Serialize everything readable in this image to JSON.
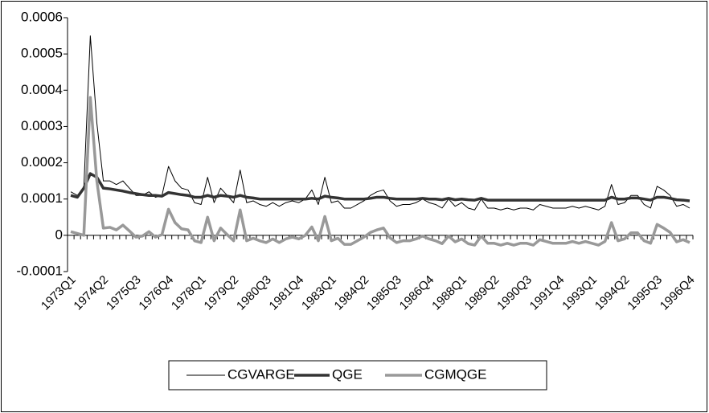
{
  "chart_data": {
    "type": "line",
    "categories": [
      "1973Q1",
      null,
      null,
      null,
      null,
      "1974Q2",
      null,
      null,
      null,
      null,
      "1975Q3",
      null,
      null,
      null,
      null,
      "1976Q4",
      null,
      null,
      null,
      null,
      "1978Q1",
      null,
      null,
      null,
      null,
      "1979Q2",
      null,
      null,
      null,
      null,
      "1980Q3",
      null,
      null,
      null,
      null,
      "1981Q4",
      null,
      null,
      null,
      null,
      "1983Q1",
      null,
      null,
      null,
      null,
      "1984Q2",
      null,
      null,
      null,
      null,
      "1985Q3",
      null,
      null,
      null,
      null,
      "1986Q4",
      null,
      null,
      null,
      null,
      "1988Q1",
      null,
      null,
      null,
      null,
      "1989Q2",
      null,
      null,
      null,
      null,
      "1990Q3",
      null,
      null,
      null,
      null,
      "1991Q4",
      null,
      null,
      null,
      null,
      "1993Q1",
      null,
      null,
      null,
      null,
      "1994Q2",
      null,
      null,
      null,
      null,
      "1995Q3",
      null,
      null,
      null,
      null,
      "1996Q4"
    ],
    "series": [
      {
        "name": "CGVARGE",
        "color": "#000000",
        "width": 1,
        "values": [
          0.00012,
          0.00011,
          0.00013,
          0.00055,
          0.00031,
          0.00015,
          0.00015,
          0.00014,
          0.00015,
          0.00013,
          0.00011,
          0.00011,
          0.00012,
          0.000105,
          0.00011,
          0.00019,
          0.00015,
          0.00013,
          0.000125,
          9e-05,
          8.5e-05,
          0.00016,
          9e-05,
          0.00013,
          0.00011,
          9e-05,
          0.00018,
          9e-05,
          9.5e-05,
          8.5e-05,
          8e-05,
          9e-05,
          8e-05,
          9e-05,
          9.5e-05,
          9e-05,
          0.0001,
          0.000125,
          8.5e-05,
          0.00016,
          9e-05,
          9.5e-05,
          7.5e-05,
          7.5e-05,
          8.5e-05,
          9.5e-05,
          0.00011,
          0.00012,
          0.000125,
          9.5e-05,
          8e-05,
          8.5e-05,
          8.5e-05,
          9e-05,
          0.0001,
          9e-05,
          8.5e-05,
          7.5e-05,
          0.0001,
          8e-05,
          9e-05,
          7.5e-05,
          7e-05,
          0.0001,
          7.5e-05,
          7.5e-05,
          7e-05,
          7.5e-05,
          7e-05,
          7.5e-05,
          7.5e-05,
          7e-05,
          8.5e-05,
          8e-05,
          7.5e-05,
          7.5e-05,
          7.5e-05,
          8e-05,
          7.5e-05,
          8e-05,
          7.5e-05,
          7e-05,
          8e-05,
          0.00014,
          8.5e-05,
          9e-05,
          0.00011,
          0.00011,
          8.5e-05,
          7.5e-05,
          0.000135,
          0.000125,
          0.00011,
          8e-05,
          8.5e-05,
          7.5e-05
        ]
      },
      {
        "name": "QGE",
        "color": "#333333",
        "width": 3.5,
        "values": [
          0.00011,
          0.000105,
          0.00013,
          0.00017,
          0.00016,
          0.00013,
          0.000128,
          0.000125,
          0.000122,
          0.000118,
          0.000115,
          0.000112,
          0.00011,
          0.00011,
          0.000108,
          0.000118,
          0.000115,
          0.000112,
          0.00011,
          0.000105,
          0.000105,
          0.00011,
          0.000105,
          0.00011,
          0.000108,
          0.000105,
          0.00011,
          0.000105,
          0.000103,
          0.0001,
          0.0001,
          0.0001,
          0.0001,
          0.0001,
          0.0001,
          0.0001,
          0.0001,
          0.000102,
          0.0001,
          0.000108,
          0.000105,
          0.000103,
          0.0001,
          0.0001,
          0.0001,
          0.0001,
          0.000102,
          0.000105,
          0.000105,
          0.000102,
          0.0001,
          0.0001,
          0.0001,
          0.0001,
          0.000102,
          0.0001,
          0.0001,
          9.8e-05,
          0.000102,
          9.8e-05,
          0.0001,
          9.8e-05,
          9.7e-05,
          0.000102,
          9.7e-05,
          9.7e-05,
          9.7e-05,
          9.7e-05,
          9.7e-05,
          9.7e-05,
          9.7e-05,
          9.7e-05,
          9.7e-05,
          9.7e-05,
          9.7e-05,
          9.7e-05,
          9.7e-05,
          9.7e-05,
          9.7e-05,
          9.7e-05,
          9.7e-05,
          9.7e-05,
          9.7e-05,
          0.000105,
          0.0001,
          0.0001,
          0.000103,
          0.000103,
          0.0001,
          9.7e-05,
          0.000105,
          0.000105,
          0.000102,
          9.8e-05,
          9.7e-05,
          9.5e-05
        ]
      },
      {
        "name": "CGMQGE",
        "color": "#999999",
        "width": 3.5,
        "values": [
          1e-05,
          5e-06,
          0,
          0.00038,
          0.00015,
          2e-05,
          2.2e-05,
          1.5e-05,
          2.8e-05,
          1.2e-05,
          -5e-06,
          -2e-06,
          1e-05,
          -5e-06,
          2e-06,
          7.2e-05,
          3.5e-05,
          1.8e-05,
          1.5e-05,
          -1.5e-05,
          -2e-05,
          5e-05,
          -1.5e-05,
          2e-05,
          2e-06,
          -1.5e-05,
          7e-05,
          -1.5e-05,
          -8e-06,
          -1.5e-05,
          -2e-05,
          -1e-05,
          -2e-05,
          -1e-05,
          -5e-06,
          -1e-05,
          0,
          2.3e-05,
          -1.5e-05,
          5.2e-05,
          -1.5e-05,
          -8e-06,
          -2.5e-05,
          -2.5e-05,
          -1.5e-05,
          -5e-06,
          8e-06,
          1.5e-05,
          2e-05,
          -7e-06,
          -2e-05,
          -1.5e-05,
          -1.5e-05,
          -1e-05,
          -2e-06,
          -1e-05,
          -1.5e-05,
          -2.3e-05,
          -2e-06,
          -1.8e-05,
          -1e-05,
          -2.3e-05,
          -2.7e-05,
          -2e-06,
          -2.2e-05,
          -2.2e-05,
          -2.7e-05,
          -2.2e-05,
          -2.7e-05,
          -2.2e-05,
          -2.2e-05,
          -2.7e-05,
          -1.2e-05,
          -1.7e-05,
          -2.2e-05,
          -2.2e-05,
          -2.2e-05,
          -1.7e-05,
          -2.2e-05,
          -1.7e-05,
          -2.2e-05,
          -2.7e-05,
          -1.7e-05,
          3.5e-05,
          -1.5e-05,
          -1e-05,
          7e-06,
          7e-06,
          -1.5e-05,
          -2.2e-05,
          3e-05,
          2e-05,
          8e-06,
          -1.8e-05,
          -1.2e-05,
          -2e-05
        ]
      }
    ],
    "ylim": [
      -0.0001,
      0.0006
    ],
    "yticks": [
      -0.0001,
      0,
      0.0001,
      0.0002,
      0.0003,
      0.0004,
      0.0005,
      0.0006
    ],
    "legend": "bottom"
  }
}
